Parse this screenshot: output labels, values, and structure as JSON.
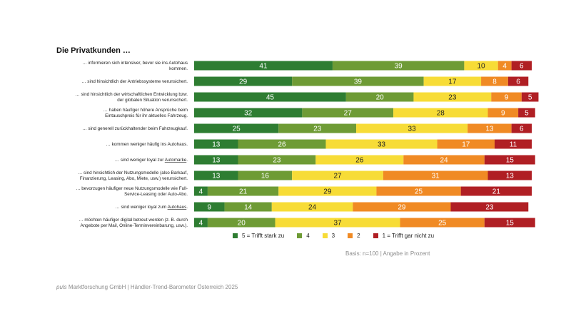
{
  "title": "Die Privatkunden …",
  "colors": {
    "c5": "#2e7d32",
    "c4": "#6e9b35",
    "c3": "#f7dc37",
    "c2": "#f08a24",
    "c1": "#b01f24"
  },
  "chart_data": {
    "type": "bar",
    "orientation": "horizontal",
    "stacked": true,
    "categories": [
      [
        "… informieren sich intensiver, bevor sie ins Autohaus",
        "kommen."
      ],
      [
        "… sind hinsichtlich der Antriebssysteme verunsichert."
      ],
      [
        "… sind hinsichtlich der wirtschaftlichen Entwicklung bzw.",
        "der globalen Situation verunsichert."
      ],
      [
        "… haben häufiger höhere Ansprüche beim",
        "Eintauschpreis für ihr aktuelles Fahrzeug."
      ],
      [
        "… sind generell zurückhaltender beim Fahrzeugkauf."
      ],
      [
        "… kommen weniger häufig ins Autohaus."
      ],
      [
        "… sind weniger loyal zur |Automarke|."
      ],
      [
        "… sind hinsichtlich der Nutzungsmodelle (also Barkauf,",
        "Finanzierung, Leasing, Abo, Miete, usw.) verunsichert."
      ],
      [
        "… bevorzugen häufiger neue Nutzungsmodelle wie Full-",
        "Service-Leasing oder Auto-Abo."
      ],
      [
        "… sind weniger loyal zum |Autohaus|."
      ],
      [
        "… möchten häufiger digital betreut werden (z. B. durch",
        "Angebote per Mail, Online-Terminvereinbarung, usw.)."
      ]
    ],
    "series": [
      {
        "name": "5 = Trifft stark zu",
        "color_key": "c5",
        "values": [
          41,
          29,
          45,
          32,
          25,
          13,
          13,
          13,
          4,
          9,
          4
        ]
      },
      {
        "name": "4",
        "color_key": "c4",
        "values": [
          39,
          39,
          20,
          27,
          23,
          26,
          23,
          16,
          21,
          14,
          20
        ]
      },
      {
        "name": "3",
        "color_key": "c3",
        "values": [
          10,
          17,
          23,
          28,
          33,
          33,
          26,
          27,
          29,
          24,
          37
        ]
      },
      {
        "name": "2",
        "color_key": "c2",
        "values": [
          4,
          8,
          9,
          9,
          13,
          17,
          24,
          31,
          25,
          29,
          25
        ]
      },
      {
        "name": "1 = Trifft gar nicht zu",
        "color_key": "c1",
        "values": [
          6,
          6,
          5,
          5,
          6,
          11,
          15,
          13,
          21,
          23,
          15
        ]
      }
    ],
    "xlim": [
      0,
      100
    ]
  },
  "basis": "Basis: n=100 | Angabe in Prozent",
  "footer": {
    "brand": "puls",
    "text": " Marktforschung GmbH | Händler-Trend-Barometer Österreich 2025"
  }
}
